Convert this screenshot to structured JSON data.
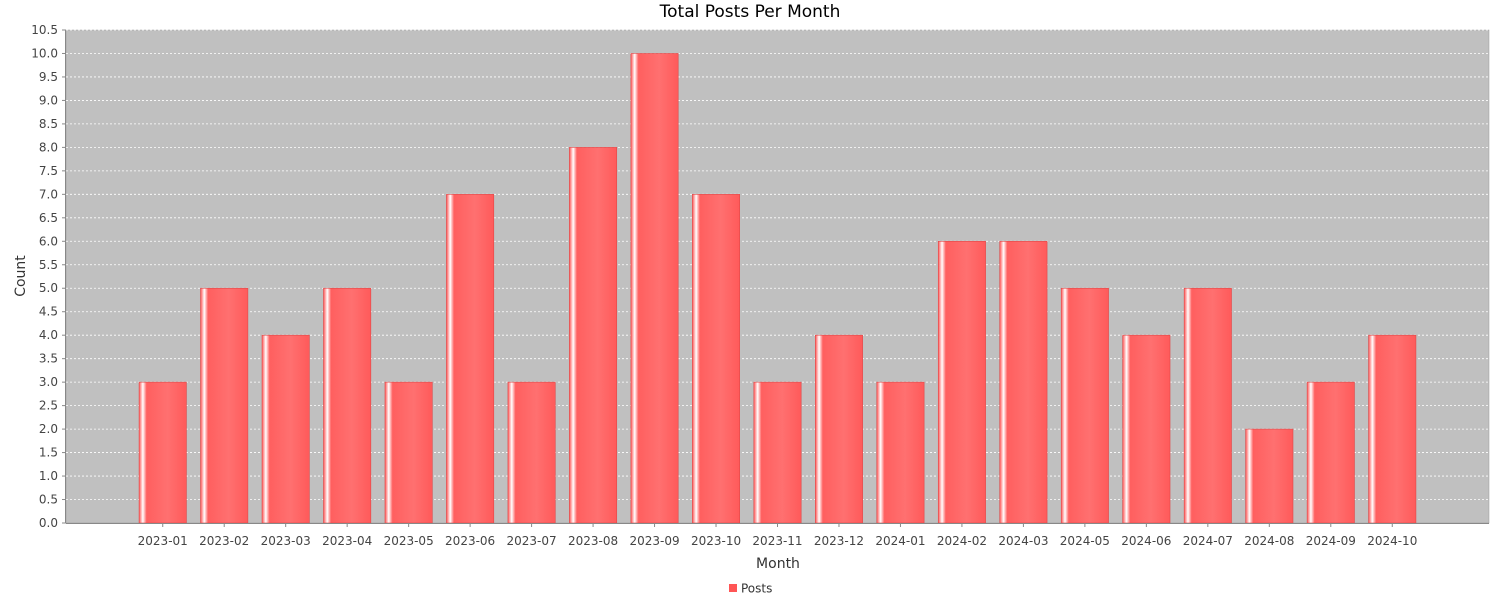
{
  "chart_data": {
    "type": "bar",
    "title": "Total Posts Per Month",
    "xlabel": "Month",
    "ylabel": "Count",
    "ylim": [
      0,
      10.5
    ],
    "ytick_step": 0.5,
    "grid": true,
    "legend_position": "bottom-center",
    "categories": [
      "2023-01",
      "2023-02",
      "2023-03",
      "2023-04",
      "2023-05",
      "2023-06",
      "2023-07",
      "2023-08",
      "2023-09",
      "2023-10",
      "2023-11",
      "2023-12",
      "2024-01",
      "2024-02",
      "2024-03",
      "2024-05",
      "2024-06",
      "2024-07",
      "2024-08",
      "2024-09",
      "2024-10"
    ],
    "series": [
      {
        "name": "Posts",
        "color": "#ff5555",
        "values": [
          3,
          5,
          4,
          5,
          3,
          7,
          3,
          8,
          10,
          7,
          3,
          4,
          3,
          6,
          6,
          5,
          4,
          5,
          2,
          3,
          4
        ]
      }
    ],
    "plot_background": "#c0c0c0"
  }
}
